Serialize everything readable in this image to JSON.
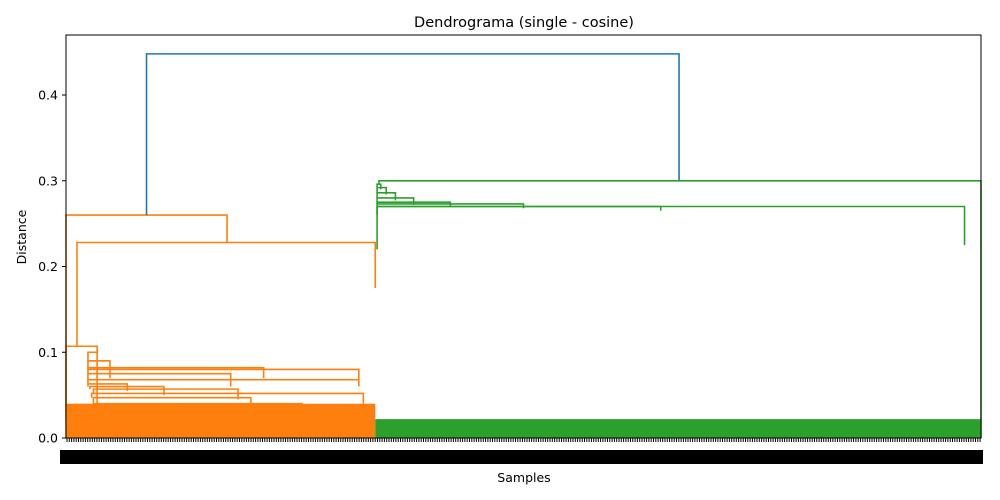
{
  "chart_data": {
    "type": "dendrogram",
    "title": "Dendrograma (single - cosine)",
    "xlabel": "Samples",
    "ylabel": "Distance",
    "ylim": [
      0,
      0.47
    ],
    "y_ticks": [
      0.0,
      0.1,
      0.2,
      0.3,
      0.4
    ],
    "grid": false,
    "leaf_span": [
      0,
      1000
    ],
    "colors": {
      "root": "#1f77b4",
      "cluster_orange": "#ff7f0e",
      "cluster_green": "#2ca02c"
    },
    "root_merge": {
      "height": 0.448,
      "left_child": {
        "leaf_pos": 88,
        "height": 0.26
      },
      "right_child": {
        "leaf_pos": 670,
        "height": 0.3
      }
    },
    "clusters": [
      {
        "name": "orange",
        "color": "#ff7f0e",
        "leaf_range": [
          0,
          338
        ],
        "links": [
          {
            "h": 0.26,
            "lx": 0,
            "lh": 0,
            "rx": 176,
            "rh": 0.228
          },
          {
            "h": 0.228,
            "lx": 12,
            "lh": 0.107,
            "rx": 338,
            "rh": 0.175
          },
          {
            "h": 0.107,
            "lx": 0,
            "lh": 0.02,
            "rx": 34,
            "rh": 0.1
          },
          {
            "h": 0.1,
            "lx": 24,
            "lh": 0.09,
            "rx": 34,
            "rh": 0.04
          },
          {
            "h": 0.09,
            "lx": 24,
            "lh": 0.082,
            "rx": 48,
            "rh": 0.07
          },
          {
            "h": 0.082,
            "lx": 24,
            "lh": 0.08,
            "rx": 216,
            "rh": 0.07
          },
          {
            "h": 0.08,
            "lx": 24,
            "lh": 0.075,
            "rx": 320,
            "rh": 0.068
          },
          {
            "h": 0.075,
            "lx": 24,
            "lh": 0.068,
            "rx": 180,
            "rh": 0.06
          },
          {
            "h": 0.068,
            "lx": 24,
            "lh": 0.063,
            "rx": 320,
            "rh": 0.06
          },
          {
            "h": 0.063,
            "lx": 24,
            "lh": 0.06,
            "rx": 67,
            "rh": 0.055
          },
          {
            "h": 0.06,
            "lx": 26,
            "lh": 0.057,
            "rx": 107,
            "rh": 0.05
          },
          {
            "h": 0.057,
            "lx": 30,
            "lh": 0.052,
            "rx": 188,
            "rh": 0.045
          },
          {
            "h": 0.052,
            "lx": 28,
            "lh": 0.047,
            "rx": 325,
            "rh": 0.04
          },
          {
            "h": 0.047,
            "lx": 30,
            "lh": 0.04,
            "rx": 202,
            "rh": 0.04
          },
          {
            "h": 0.04,
            "lx": 30,
            "lh": 0.03,
            "rx": 258,
            "rh": 0.035
          }
        ]
      },
      {
        "name": "green",
        "color": "#2ca02c",
        "leaf_range": [
          338,
          1000
        ],
        "links": [
          {
            "h": 0.3,
            "lx": 342,
            "lh": 0.296,
            "rx": 1000,
            "rh": 0.0
          },
          {
            "h": 0.296,
            "lx": 340,
            "lh": 0.292,
            "rx": 344,
            "rh": 0.29
          },
          {
            "h": 0.292,
            "lx": 340,
            "lh": 0.286,
            "rx": 350,
            "rh": 0.284
          },
          {
            "h": 0.286,
            "lx": 340,
            "lh": 0.28,
            "rx": 360,
            "rh": 0.277
          },
          {
            "h": 0.28,
            "lx": 340,
            "lh": 0.275,
            "rx": 380,
            "rh": 0.272
          },
          {
            "h": 0.275,
            "lx": 340,
            "lh": 0.273,
            "rx": 420,
            "rh": 0.27
          },
          {
            "h": 0.273,
            "lx": 340,
            "lh": 0.27,
            "rx": 500,
            "rh": 0.268
          },
          {
            "h": 0.27,
            "lx": 340,
            "lh": 0.26,
            "rx": 650,
            "rh": 0.265
          },
          {
            "h": 0.27,
            "lx": 340,
            "lh": 0.22,
            "rx": 982,
            "rh": 0.225
          }
        ]
      }
    ],
    "bulk_fill": [
      {
        "color": "#ff7f0e",
        "from": 0,
        "to": 338,
        "top": 0.04
      },
      {
        "color": "#2ca02c",
        "from": 338,
        "to": 1000,
        "top": 0.022
      }
    ]
  }
}
